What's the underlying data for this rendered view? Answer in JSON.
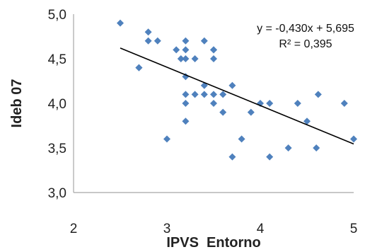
{
  "chart_data": {
    "type": "scatter",
    "title": "",
    "xlabel": "IPVS  Entorno",
    "ylabel": "Ideb 07",
    "xlim": [
      2,
      5
    ],
    "ylim": [
      3.0,
      5.0
    ],
    "x_ticks": [
      2,
      3,
      4,
      5
    ],
    "x_tick_labels": [
      "2",
      "3",
      "4",
      "5"
    ],
    "y_ticks": [
      3.0,
      3.5,
      4.0,
      4.5,
      5.0
    ],
    "y_tick_labels": [
      "3,0",
      "3,5",
      "4,0",
      "4,5",
      "5,0"
    ],
    "grid": false,
    "marker_color": "#4f81bd",
    "trendline_color": "#000000",
    "series": [
      {
        "x": [
          2.5,
          2.7,
          2.7,
          2.8,
          2.8,
          2.9,
          3.0,
          3.1,
          3.15,
          3.2,
          3.2,
          3.2,
          3.2,
          3.2,
          3.2,
          3.2,
          3.3,
          3.3,
          3.4,
          3.4,
          3.4,
          3.5,
          3.5,
          3.5,
          3.5,
          3.5,
          3.6,
          3.6,
          3.7,
          3.7,
          3.8,
          3.9,
          4.0,
          4.1,
          4.1,
          4.3,
          4.4,
          4.5,
          4.6,
          4.62,
          4.9,
          5.0
        ],
        "y": [
          4.9,
          4.4,
          4.4,
          4.8,
          4.7,
          4.7,
          3.6,
          4.6,
          4.5,
          4.7,
          4.6,
          4.3,
          4.1,
          4.0,
          3.8,
          4.5,
          4.5,
          4.1,
          4.7,
          4.2,
          4.1,
          4.6,
          4.5,
          4.1,
          4.0,
          4.6,
          4.1,
          3.9,
          4.2,
          3.4,
          3.6,
          3.9,
          4.0,
          4.0,
          3.4,
          3.5,
          4.0,
          3.8,
          3.5,
          4.1,
          4.0,
          3.6
        ]
      }
    ],
    "trendline": {
      "slope": -0.43,
      "intercept": 5.695,
      "x_range": [
        2.5,
        5.0
      ],
      "equation_label": "y = -0,430x + 5,695",
      "r2_label": "R² = 0,395"
    }
  }
}
